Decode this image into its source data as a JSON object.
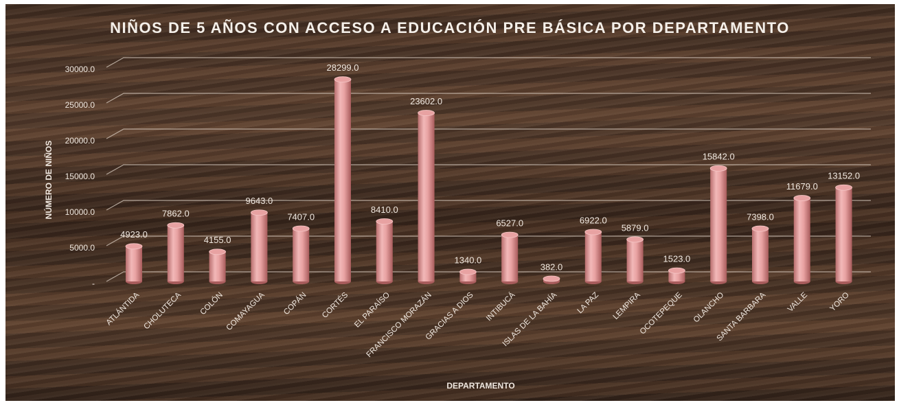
{
  "chart_data": {
    "type": "bar",
    "title": "NIÑOS DE 5 AÑOS CON ACCESO A EDUCACIÓN PRE BÁSICA POR DEPARTAMENTO",
    "x_label": "DEPARTAMENTO",
    "y_label": "NÚMERO DE NIÑOS",
    "categories": [
      "ATLÁNTIDA",
      "CHOLUTECA",
      "COLÓN",
      "COMAYAGUA",
      "COPÁN",
      "CORTÉS",
      "EL PARAÍSO",
      "FRANCISCO MORAZÁN",
      "GRACIAS A DIOS",
      "INTIBUCÁ",
      "ISLAS DE LA BAHÍA",
      "LA PAZ",
      "LEMPIRA",
      "OCOTEPEQUE",
      "OLANCHO",
      "SANTA BARBARA",
      "VALLE",
      "YORO"
    ],
    "values": [
      4923,
      7862,
      4155,
      9643,
      7407,
      28299,
      8410,
      23602,
      1340,
      6527,
      382,
      6922,
      5879,
      1523,
      15842,
      7398,
      11679,
      13152
    ],
    "value_labels": [
      "4923.0",
      "7862.0",
      "4155.0",
      "9643.0",
      "7407.0",
      "28299.0",
      "8410.0",
      "23602.0",
      "1340.0",
      "6527.0",
      "382.0",
      "6922.0",
      "5879.0",
      "1523.0",
      "15842.0",
      "7398.0",
      "11679.0",
      "13152.0"
    ],
    "color": "#e8a2a2",
    "ylim": [
      0,
      30000
    ],
    "yticks": [
      {
        "value": 0,
        "label": "-"
      },
      {
        "value": 5000,
        "label": "5000.0"
      },
      {
        "value": 10000,
        "label": "10000.0"
      },
      {
        "value": 15000,
        "label": "15000.0"
      },
      {
        "value": 20000,
        "label": "20000.0"
      },
      {
        "value": 25000,
        "label": "25000.0"
      },
      {
        "value": 30000,
        "label": "30000.0"
      }
    ],
    "grid": true
  }
}
